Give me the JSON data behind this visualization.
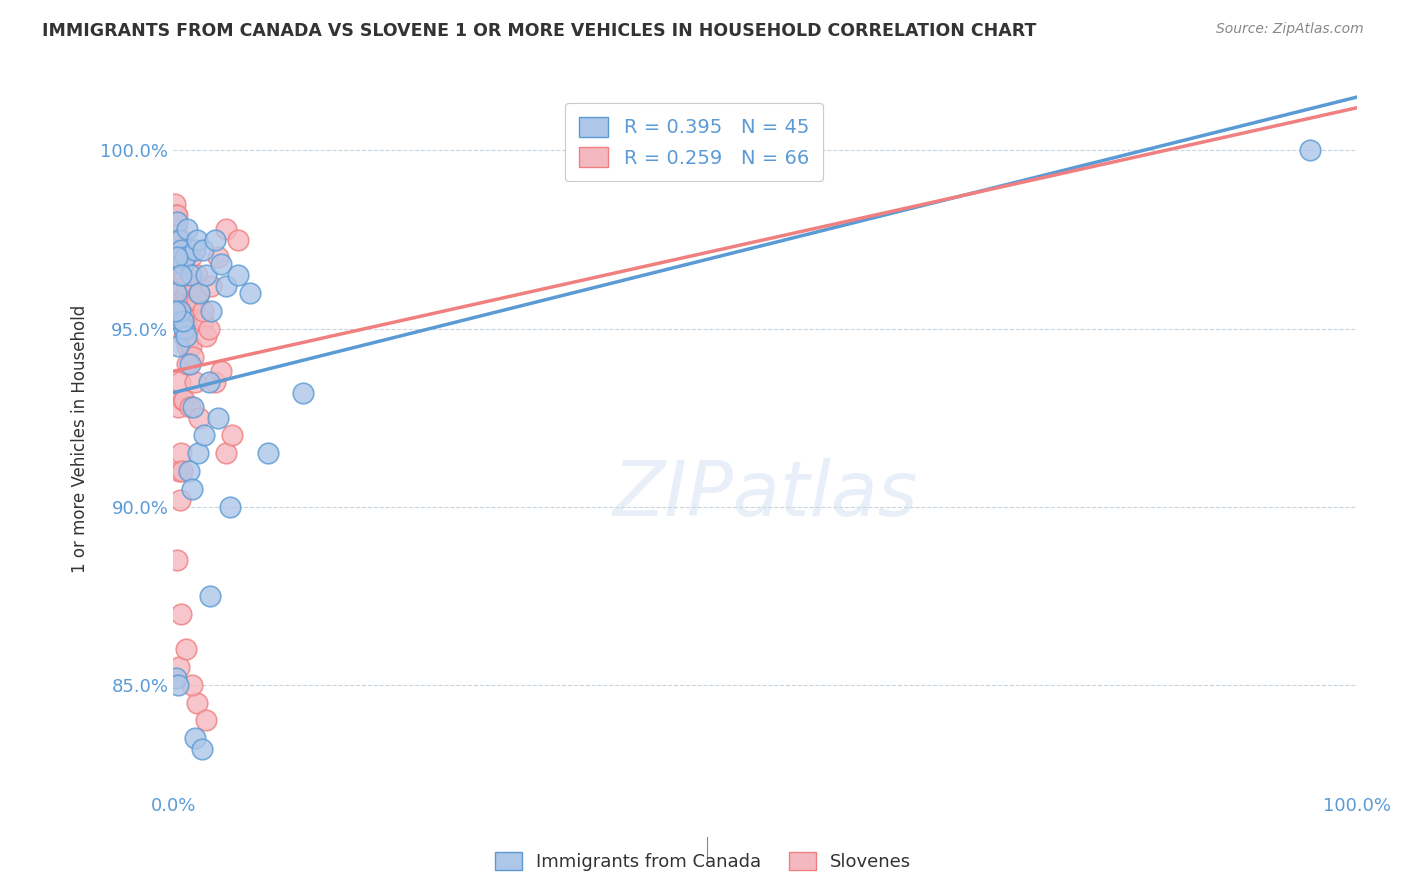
{
  "title": "IMMIGRANTS FROM CANADA VS SLOVENE 1 OR MORE VEHICLES IN HOUSEHOLD CORRELATION CHART",
  "source": "Source: ZipAtlas.com",
  "ylabel": "1 or more Vehicles in Household",
  "blue_R": 0.395,
  "blue_N": 45,
  "pink_R": 0.259,
  "pink_N": 66,
  "blue_color": "#5b9bd5",
  "pink_color": "#f08080",
  "blue_scatter_color": "#aec6e8",
  "pink_scatter_color": "#f4b8c0",
  "background_color": "#ffffff",
  "grid_color": "#c8d4de",
  "title_color": "#333333",
  "axis_label_color": "#5b9bd5",
  "legend_label_blue": "Immigrants from Canada",
  "legend_label_pink": "Slovenes",
  "blue_trendline": [
    [
      0,
      93.2
    ],
    [
      100,
      101.5
    ]
  ],
  "pink_trendline": [
    [
      0,
      93.8
    ],
    [
      100,
      101.2
    ]
  ],
  "blue_x": [
    0.3,
    0.5,
    0.7,
    0.8,
    1.0,
    1.2,
    1.5,
    1.8,
    2.0,
    2.2,
    2.5,
    2.8,
    3.2,
    3.5,
    4.0,
    4.5,
    5.5,
    6.5,
    8.0,
    0.4,
    0.6,
    0.9,
    1.1,
    1.4,
    1.7,
    2.1,
    2.6,
    3.0,
    3.8,
    0.25,
    0.55,
    0.85,
    1.3,
    1.6,
    0.2,
    0.4,
    11.0,
    0.15,
    1.8,
    2.4,
    3.1,
    4.8,
    96.0,
    0.35,
    0.65
  ],
  "blue_y": [
    98.0,
    97.5,
    97.2,
    96.8,
    97.0,
    97.8,
    96.5,
    97.2,
    97.5,
    96.0,
    97.2,
    96.5,
    95.5,
    97.5,
    96.8,
    96.2,
    96.5,
    96.0,
    91.5,
    94.5,
    95.2,
    95.0,
    94.8,
    94.0,
    92.8,
    91.5,
    92.0,
    93.5,
    92.5,
    96.0,
    95.5,
    95.2,
    91.0,
    90.5,
    85.2,
    85.0,
    93.2,
    95.5,
    83.5,
    83.2,
    87.5,
    90.0,
    100.0,
    97.0,
    96.5
  ],
  "pink_x": [
    0.15,
    0.2,
    0.25,
    0.3,
    0.35,
    0.4,
    0.45,
    0.5,
    0.55,
    0.6,
    0.65,
    0.7,
    0.75,
    0.8,
    0.85,
    0.9,
    0.95,
    1.0,
    1.05,
    1.1,
    1.15,
    1.2,
    1.25,
    1.3,
    1.4,
    1.5,
    1.6,
    1.7,
    1.8,
    2.0,
    2.2,
    2.5,
    2.8,
    3.0,
    3.5,
    4.0,
    4.5,
    5.0,
    0.3,
    0.5,
    0.7,
    1.0,
    1.5,
    2.0,
    2.5,
    0.4,
    0.6,
    0.8,
    1.2,
    1.8,
    0.35,
    0.55,
    0.75,
    0.95,
    1.4,
    2.0,
    2.8,
    0.45,
    0.65,
    1.1,
    1.6,
    2.2,
    3.2,
    3.8,
    4.5,
    5.5
  ],
  "pink_y": [
    98.5,
    98.2,
    97.8,
    97.5,
    98.2,
    97.0,
    96.5,
    97.2,
    95.8,
    96.2,
    97.5,
    96.8,
    95.5,
    96.5,
    95.2,
    95.8,
    94.8,
    95.5,
    96.0,
    95.2,
    94.5,
    96.2,
    95.0,
    95.5,
    96.5,
    94.5,
    95.8,
    94.2,
    96.2,
    95.8,
    96.0,
    95.2,
    94.8,
    95.0,
    93.5,
    93.8,
    91.5,
    92.0,
    95.5,
    91.0,
    91.5,
    96.5,
    97.0,
    96.5,
    95.5,
    92.8,
    93.5,
    93.0,
    94.0,
    93.5,
    88.5,
    90.2,
    91.0,
    93.0,
    92.8,
    84.5,
    84.0,
    85.5,
    87.0,
    86.0,
    85.0,
    92.5,
    96.2,
    97.0,
    97.8,
    97.5
  ]
}
